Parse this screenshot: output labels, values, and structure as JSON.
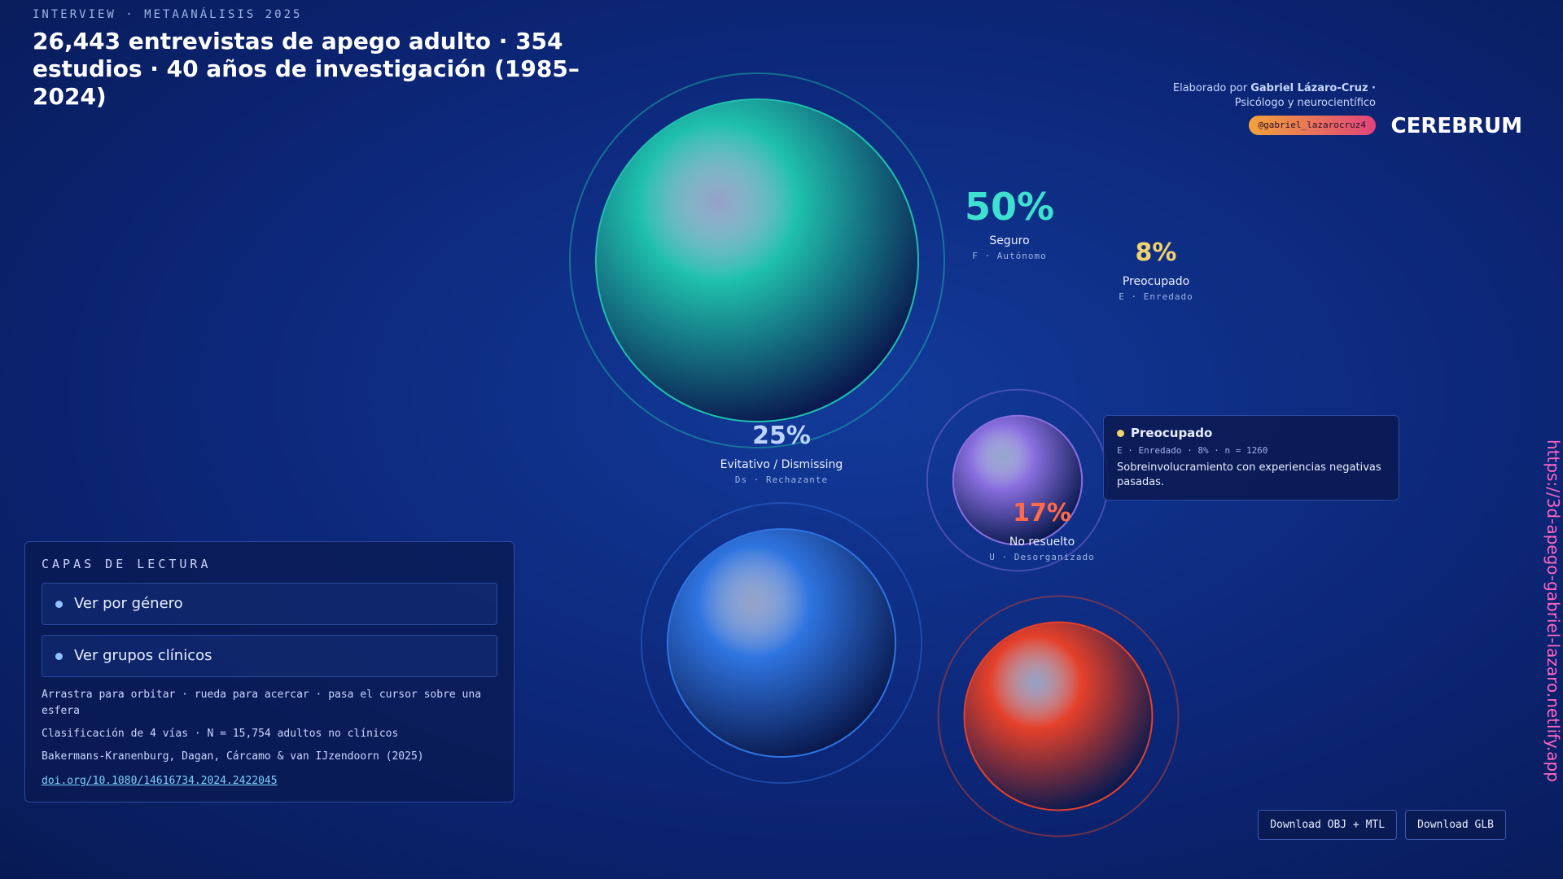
{
  "header": {
    "eyebrow": "INTERVIEW · METAANÁLISIS 2025",
    "title": "26,443 entrevistas de apego adulto · 354 estudios · 40 años de investigación (1985–2024)"
  },
  "credit": {
    "prefix": "Elaborado por",
    "author": "Gabriel Lázaro-Cruz ·",
    "role": "Psicólogo y neurocientífico",
    "handle": "@gabriel_lazarocruz4",
    "logo": "CEREBRUM"
  },
  "groups": [
    {
      "name": "Seguro",
      "code": "F · Autónomo",
      "value": 50,
      "value_label": "50%",
      "color": "#1fc0ad",
      "label_color": "#3fe0d0"
    },
    {
      "name": "Preocupado",
      "code": "E · Enredado",
      "value": 8,
      "value_label": "8%",
      "color": "#8a6fe0",
      "label_color": "#f2d36b"
    },
    {
      "name": "Evitativo / Dismissing",
      "code": "Ds · Rechazante",
      "value": 25,
      "value_label": "25%",
      "color": "#2f74e0",
      "label_color": "#bcd4ff"
    },
    {
      "name": "No resuelto",
      "code": "U · Desorganizado",
      "value": 17,
      "value_label": "17%",
      "color": "#e5402a",
      "label_color": "#ff6a4a"
    }
  ],
  "tooltip": {
    "title": "Preocupado",
    "meta": "E · Enredado · 8% · n = 1260",
    "text": "Sobreinvolucramiento con experiencias negativas pasadas."
  },
  "panel": {
    "title": "CAPAS DE LECTURA",
    "toggles": [
      "Ver por género",
      "Ver grupos clínicos"
    ],
    "hint": "Arrastra para orbitar · rueda para acercar · pasa el cursor sobre una esfera",
    "note": "Clasificación de 4 vías · N = 15,754 adultos no clínicos",
    "authors": "Bakermans-Kranenburg, Dagan, Cárcamo & van IJzendoorn (2025)",
    "doi": "doi.org/10.1080/14616734.2024.2422045"
  },
  "downloads": [
    "Download OBJ + MTL",
    "Download GLB"
  ],
  "url": "https://3d-apego-gabriel-lazaro.netlify.app"
}
